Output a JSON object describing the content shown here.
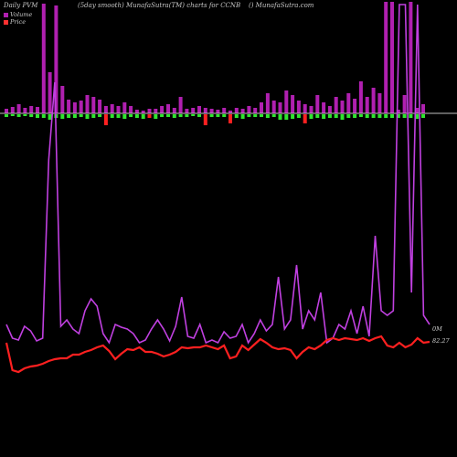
{
  "header": {
    "left": "Daily PVM",
    "center": "(5day smooth) MunafaSutra(TM) charts for CCNB",
    "right": "() MunafaSutra.com"
  },
  "legend": [
    {
      "label": "Volume",
      "color": "#b020b0"
    },
    {
      "label": "Price",
      "color": "#ff3030"
    }
  ],
  "colors": {
    "background": "#000000",
    "baseline": "#cccccc",
    "volume_bar": "#b020b0",
    "up_bar": "#2ee62e",
    "down_bar": "#ff2020",
    "volume_line": "#c040e0",
    "price_line": "#ff2020"
  },
  "chart_data": {
    "type": "line",
    "x_count": 71,
    "y_right_labels": {
      "volume": "0M",
      "price": "82.27"
    },
    "series": [
      {
        "name": "Volume",
        "values": [
          355,
          370,
          372,
          357,
          362,
          373,
          370,
          175,
          90,
          357,
          350,
          360,
          365,
          340,
          327,
          335,
          365,
          375,
          355,
          358,
          360,
          365,
          375,
          372,
          360,
          350,
          360,
          373,
          357,
          325,
          368,
          370,
          355,
          375,
          372,
          375,
          363,
          370,
          368,
          355,
          375,
          365,
          350,
          362,
          355,
          303,
          360,
          350,
          290,
          360,
          340,
          350,
          320,
          375,
          370,
          355,
          360,
          340,
          365,
          335,
          368,
          258,
          340,
          345,
          340,
          5,
          5,
          320,
          5,
          345,
          355
        ]
      },
      {
        "name": "Price",
        "values": [
          375,
          405,
          407,
          403,
          401,
          400,
          398,
          395,
          393,
          392,
          392,
          388,
          388,
          385,
          383,
          380,
          378,
          384,
          393,
          387,
          382,
          383,
          380,
          385,
          385,
          387,
          390,
          388,
          385,
          380,
          381,
          380,
          380,
          378,
          380,
          382,
          378,
          392,
          390,
          378,
          383,
          377,
          371,
          375,
          380,
          382,
          381,
          383,
          392,
          385,
          380,
          382,
          378,
          372,
          370,
          372,
          370,
          371,
          372,
          370,
          373,
          370,
          368,
          378,
          380,
          375,
          380,
          377,
          370,
          375,
          374
        ]
      }
    ],
    "volume_bars": [
      {
        "v": 5,
        "d": -3,
        "t": "up"
      },
      {
        "v": 7,
        "d": -2,
        "t": "up"
      },
      {
        "v": 10,
        "d": -3,
        "t": "up"
      },
      {
        "v": 6,
        "d": -2,
        "t": "up"
      },
      {
        "v": 8,
        "d": -3,
        "t": "up"
      },
      {
        "v": 7,
        "d": -4,
        "t": "up"
      },
      {
        "v": 120,
        "d": -4,
        "t": "up"
      },
      {
        "v": 45,
        "d": -6,
        "t": "up"
      },
      {
        "v": 118,
        "d": -4,
        "t": "up"
      },
      {
        "v": 30,
        "d": -5,
        "t": "up"
      },
      {
        "v": 15,
        "d": -4,
        "t": "up"
      },
      {
        "v": 12,
        "d": -4,
        "t": "up"
      },
      {
        "v": 14,
        "d": -3,
        "t": "up"
      },
      {
        "v": 20,
        "d": -5,
        "t": "up"
      },
      {
        "v": 18,
        "d": -4,
        "t": "up"
      },
      {
        "v": 15,
        "d": -3,
        "t": "up"
      },
      {
        "v": 8,
        "d": -12,
        "t": "down"
      },
      {
        "v": 10,
        "d": -4,
        "t": "up"
      },
      {
        "v": 8,
        "d": -4,
        "t": "up"
      },
      {
        "v": 12,
        "d": -5,
        "t": "up"
      },
      {
        "v": 8,
        "d": -3,
        "t": "up"
      },
      {
        "v": 4,
        "d": -4,
        "t": "up"
      },
      {
        "v": 3,
        "d": -5,
        "t": "up"
      },
      {
        "v": 5,
        "d": -4,
        "t": "down"
      },
      {
        "v": 5,
        "d": -5,
        "t": "up"
      },
      {
        "v": 8,
        "d": -3,
        "t": "up"
      },
      {
        "v": 10,
        "d": -3,
        "t": "up"
      },
      {
        "v": 6,
        "d": -4,
        "t": "up"
      },
      {
        "v": 18,
        "d": -3,
        "t": "up"
      },
      {
        "v": 5,
        "d": -3,
        "t": "up"
      },
      {
        "v": 6,
        "d": -2,
        "t": "up"
      },
      {
        "v": 8,
        "d": -3,
        "t": "up"
      },
      {
        "v": 6,
        "d": -12,
        "t": "down"
      },
      {
        "v": 5,
        "d": -3,
        "t": "up"
      },
      {
        "v": 4,
        "d": -3,
        "t": "up"
      },
      {
        "v": 6,
        "d": -3,
        "t": "up"
      },
      {
        "v": 3,
        "d": -10,
        "t": "down"
      },
      {
        "v": 6,
        "d": -4,
        "t": "up"
      },
      {
        "v": 5,
        "d": -5,
        "t": "up"
      },
      {
        "v": 8,
        "d": -3,
        "t": "up"
      },
      {
        "v": 6,
        "d": -3,
        "t": "up"
      },
      {
        "v": 12,
        "d": -3,
        "t": "up"
      },
      {
        "v": 22,
        "d": -4,
        "t": "up"
      },
      {
        "v": 14,
        "d": -3,
        "t": "up"
      },
      {
        "v": 12,
        "d": -6,
        "t": "up"
      },
      {
        "v": 25,
        "d": -6,
        "t": "up"
      },
      {
        "v": 20,
        "d": -5,
        "t": "up"
      },
      {
        "v": 14,
        "d": -4,
        "t": "up"
      },
      {
        "v": 10,
        "d": -10,
        "t": "down"
      },
      {
        "v": 8,
        "d": -5,
        "t": "up"
      },
      {
        "v": 20,
        "d": -4,
        "t": "up"
      },
      {
        "v": 12,
        "d": -5,
        "t": "up"
      },
      {
        "v": 8,
        "d": -4,
        "t": "up"
      },
      {
        "v": 18,
        "d": -4,
        "t": "up"
      },
      {
        "v": 14,
        "d": -6,
        "t": "up"
      },
      {
        "v": 22,
        "d": -4,
        "t": "up"
      },
      {
        "v": 16,
        "d": -4,
        "t": "up"
      },
      {
        "v": 35,
        "d": -3,
        "t": "up"
      },
      {
        "v": 18,
        "d": -4,
        "t": "up"
      },
      {
        "v": 28,
        "d": -4,
        "t": "up"
      },
      {
        "v": 22,
        "d": -4,
        "t": "up"
      },
      {
        "v": 122,
        "d": -4,
        "t": "up"
      },
      {
        "v": 122,
        "d": -4,
        "t": "up"
      },
      {
        "v": 4,
        "d": -4,
        "t": "up"
      },
      {
        "v": 20,
        "d": -4,
        "t": "up"
      },
      {
        "v": 122,
        "d": -4,
        "t": "up"
      },
      {
        "v": 6,
        "d": -5,
        "t": "up"
      },
      {
        "v": 10,
        "d": -4,
        "t": "up"
      }
    ]
  }
}
